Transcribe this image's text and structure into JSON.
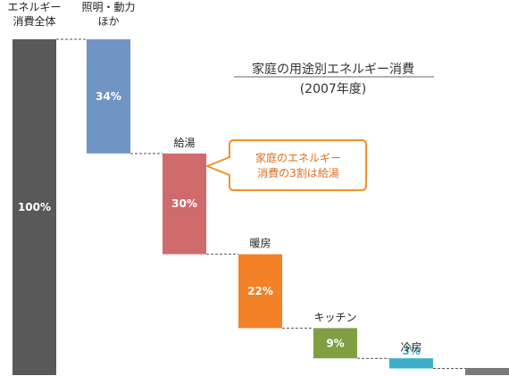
{
  "chart_data": {
    "type": "bar",
    "subtype": "waterfall",
    "title": "家庭の用途別エネルギー消費",
    "subtitle": "(2007年度)",
    "callout": [
      "家庭のエネルギー",
      "消費の3割は給湯"
    ],
    "categories": [
      [
        "エネルギー",
        "消費全体"
      ],
      [
        "照明・動力",
        "ほか"
      ],
      [
        "給湯"
      ],
      [
        "暖房"
      ],
      [
        "キッチン"
      ],
      [
        "冷房"
      ]
    ],
    "values": [
      100,
      34,
      30,
      22,
      9,
      3
    ],
    "value_labels": [
      "100%",
      "34%",
      "30%",
      "22%",
      "9%",
      "3%"
    ],
    "ylim": [
      0,
      100
    ],
    "colors": [
      "#595959",
      "#7094c4",
      "#d06b6b",
      "#f38128",
      "#7f9f42",
      "#3aafc7",
      "#7a7a7a"
    ],
    "label_colors": [
      "#ffffff",
      "#ffffff",
      "#ffffff",
      "#ffffff",
      "#ffffff",
      "#3aafc7"
    ],
    "grid": false,
    "legend": "none"
  }
}
